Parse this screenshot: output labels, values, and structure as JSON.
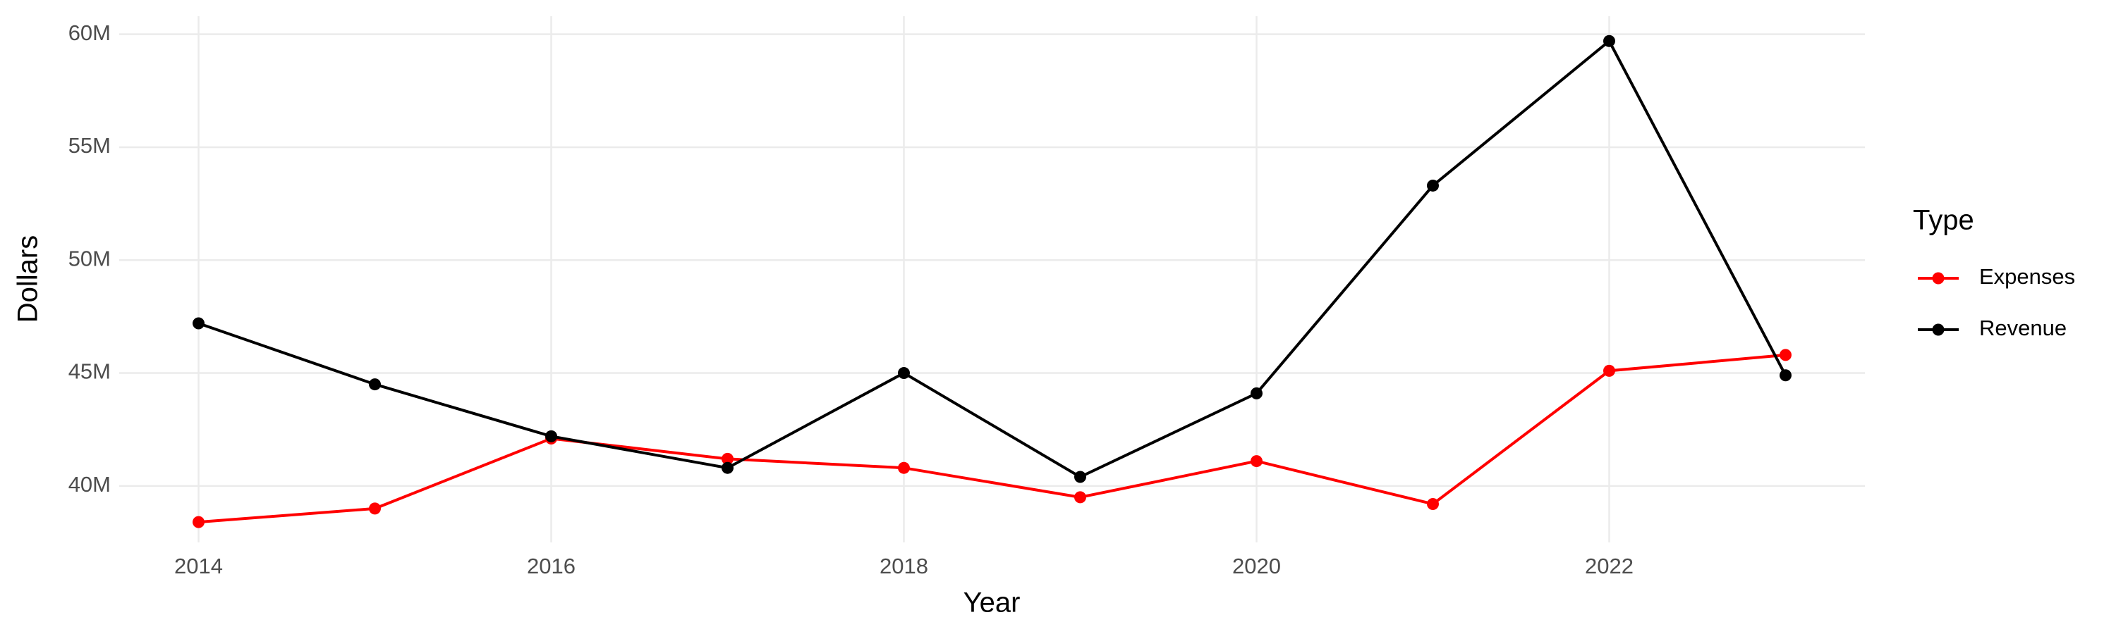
{
  "chart_data": {
    "type": "line",
    "x_label": "Year",
    "y_label": "Dollars",
    "legend_title": "Type",
    "legend_position": "right",
    "grid": true,
    "x": [
      2014,
      2015,
      2016,
      2017,
      2018,
      2019,
      2020,
      2021,
      2022,
      2023
    ],
    "series": [
      {
        "name": "Expenses",
        "color": "#ff0000",
        "values": [
          38400000,
          39000000,
          42100000,
          41200000,
          40800000,
          39500000,
          41100000,
          39200000,
          45100000,
          45800000
        ]
      },
      {
        "name": "Revenue",
        "color": "#000000",
        "values": [
          47200000,
          44500000,
          42200000,
          40800000,
          45000000,
          40400000,
          44100000,
          53300000,
          59700000,
          44900000
        ]
      }
    ],
    "xlim": [
      2013.55,
      2023.45
    ],
    "xticks": [
      2014,
      2016,
      2018,
      2020,
      2022
    ],
    "ylim": [
      37500000,
      60800000
    ],
    "yticks": [
      {
        "value": 40000000,
        "label": "40M"
      },
      {
        "value": 45000000,
        "label": "45M"
      },
      {
        "value": 50000000,
        "label": "50M"
      },
      {
        "value": 55000000,
        "label": "55M"
      },
      {
        "value": 60000000,
        "label": "60M"
      }
    ]
  }
}
